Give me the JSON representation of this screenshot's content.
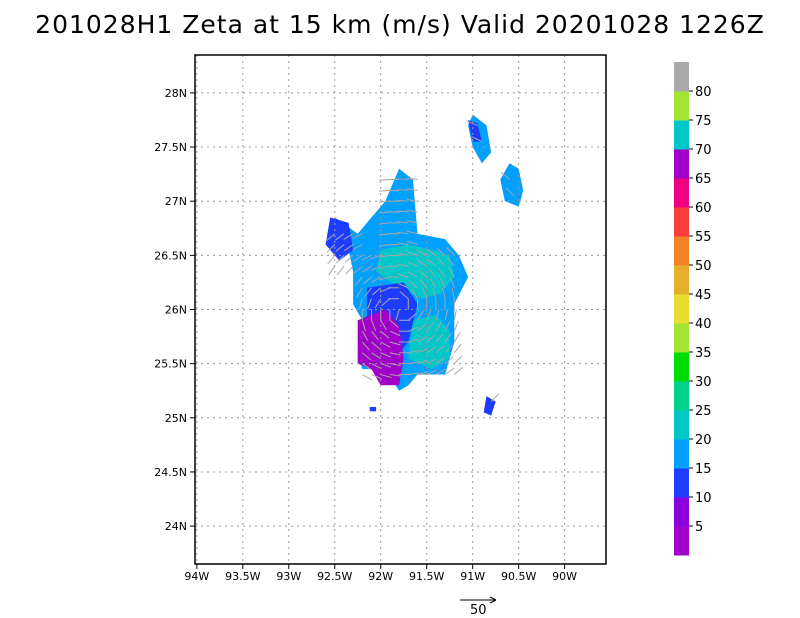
{
  "title": "201028H1 Zeta at 15 km (m/s) Valid 20201028 1226Z",
  "axes": {
    "x_labels": [
      "94W",
      "93.5W",
      "93W",
      "92.5W",
      "92W",
      "91.5W",
      "91W",
      "90.5W",
      "90W"
    ],
    "x_values": [
      -94,
      -93.5,
      -93,
      -92.5,
      -92,
      -91.5,
      -91,
      -90.5,
      -90
    ],
    "y_labels": [
      "28N",
      "27.5N",
      "27N",
      "26.5N",
      "26N",
      "25.5N",
      "25N",
      "24.5N",
      "24N"
    ],
    "y_values": [
      28,
      27.5,
      27,
      26.5,
      26,
      25.5,
      25,
      24.5,
      24
    ],
    "lon_range": [
      -94.02,
      -89.55
    ],
    "lat_range": [
      23.65,
      28.35
    ],
    "grid": "dotted"
  },
  "colorbar": {
    "labels": [
      "5",
      "10",
      "15",
      "20",
      "25",
      "30",
      "35",
      "40",
      "45",
      "50",
      "55",
      "60",
      "65",
      "70",
      "75",
      "80"
    ],
    "colors": [
      "#a000c8",
      "#8c00dc",
      "#1e3cff",
      "#00a0ff",
      "#00c8c8",
      "#00d28c",
      "#00dc00",
      "#a0e632",
      "#e6dc32",
      "#e6af2d",
      "#f08228",
      "#fa3c3c",
      "#f00082",
      "#a000c8",
      "#00c8c8",
      "#a0e632",
      "#aaaaaa"
    ]
  },
  "reference_vector": {
    "label": "50"
  },
  "chart_data": {
    "type": "map",
    "title": "201028H1 Zeta at 15 km (m/s) Valid 20201028 1226Z",
    "variable_units": "m/s",
    "lon_range": [
      -94.02,
      -89.55
    ],
    "lat_range": [
      23.65,
      28.35
    ],
    "shaded_regions": [
      {
        "value_class": "15-20",
        "color": "#00a0ff",
        "lon": [
          -92.5,
          -91.2
        ],
        "lat": [
          25.6,
          27.3
        ]
      },
      {
        "value_class": "20-25",
        "color": "#00c8c8",
        "lon": [
          -91.9,
          -91.2
        ],
        "lat": [
          25.5,
          26.6
        ]
      },
      {
        "value_class": "5-10",
        "color": "#8c00dc",
        "lon": [
          -92.2,
          -91.7
        ],
        "lat": [
          25.2,
          25.9
        ]
      },
      {
        "value_class": "10-15",
        "color": "#1e3cff",
        "lon": [
          -92.6,
          -92.3
        ],
        "lat": [
          26.4,
          26.85
        ]
      },
      {
        "value_class": "15-20",
        "color": "#00a0ff",
        "lon": [
          -91.0,
          -90.8
        ],
        "lat": [
          27.35,
          27.8
        ]
      },
      {
        "value_class": "15-20",
        "color": "#00a0ff",
        "lon": [
          -90.7,
          -90.5
        ],
        "lat": [
          26.95,
          27.35
        ]
      },
      {
        "value_class": "10-15",
        "color": "#1e3cff",
        "lon": [
          -90.85,
          -90.75
        ],
        "lat": [
          25.0,
          25.2
        ]
      }
    ],
    "reference_vector_ms": 50
  }
}
